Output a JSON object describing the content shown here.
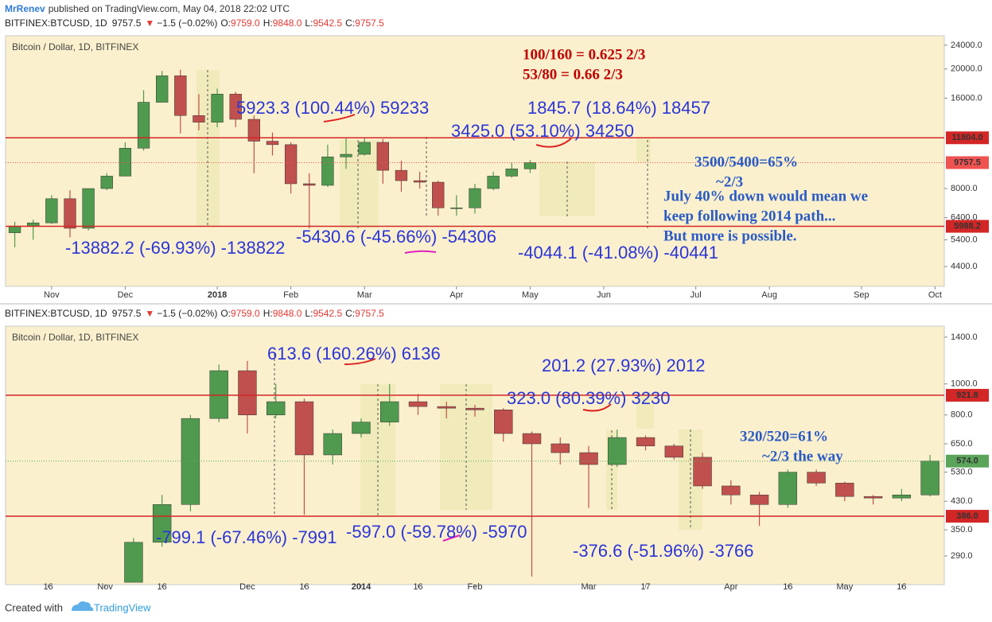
{
  "published": {
    "author": "MrRenev",
    "text": "published on TradingView.com, May 04, 2018 22:02 UTC"
  },
  "chart_data": [
    {
      "type": "candlestick",
      "header": {
        "symbol": "BITFINEX:BTCUSD, 1D",
        "last": "9757.5",
        "arrow": "▼",
        "change": "−1.5 (−0.02%)",
        "ohlc": [
          {
            "label": "O:",
            "value": "9759.0"
          },
          {
            "label": "H:",
            "value": "9848.0"
          },
          {
            "label": "L:",
            "value": "9542.5"
          },
          {
            "label": "C:",
            "value": "9757.5"
          }
        ]
      },
      "title": "Bitcoin / Dollar, 1D, BITFINEX",
      "categories": [
        null,
        null,
        "Nov",
        null,
        null,
        null,
        "Dec",
        null,
        null,
        null,
        null,
        "2018",
        null,
        null,
        null,
        "Feb",
        null,
        null,
        null,
        "Mar",
        null,
        null,
        null,
        null,
        "Apr",
        null,
        null,
        null,
        "May",
        null,
        null,
        null,
        "Jun",
        null,
        null,
        null,
        null,
        "Jul",
        null,
        null,
        null,
        "Aug",
        null,
        null,
        null,
        null,
        "Sep",
        null,
        null,
        null,
        "Oct"
      ],
      "open": [
        5700,
        6000,
        6150,
        7400,
        5900,
        8000,
        8800,
        10900,
        15500,
        19000,
        14000,
        13300,
        16500,
        13600,
        11500,
        11200,
        8300,
        8200,
        10200,
        10400,
        11400,
        9200,
        8500,
        8400,
        6900,
        6900,
        8000,
        8800,
        9300,
        null,
        null,
        null,
        null,
        null,
        null,
        null,
        null,
        null,
        null,
        null,
        null,
        null,
        null,
        null,
        null,
        null,
        null,
        null,
        null,
        null,
        null
      ],
      "high": [
        6200,
        6300,
        7600,
        7900,
        8000,
        9000,
        11400,
        17000,
        19700,
        19900,
        16500,
        17200,
        16800,
        14000,
        12300,
        11400,
        9000,
        11200,
        11800,
        11800,
        11700,
        9900,
        9100,
        8500,
        7600,
        8300,
        9100,
        9800,
        9950,
        null,
        null,
        null,
        null,
        null,
        null,
        null,
        null,
        null,
        null,
        null,
        null,
        null,
        null,
        null,
        null,
        null,
        null,
        null,
        null,
        null,
        null
      ],
      "low": [
        5100,
        5400,
        6100,
        5500,
        5800,
        7900,
        8800,
        10700,
        15500,
        12200,
        12500,
        12800,
        12800,
        9000,
        10300,
        7700,
        5900,
        8100,
        9300,
        10300,
        8300,
        7800,
        8000,
        6500,
        6500,
        6600,
        7900,
        8700,
        9000,
        null,
        null,
        null,
        null,
        null,
        null,
        null,
        null,
        null,
        null,
        null,
        null,
        null,
        null,
        null,
        null,
        null,
        null,
        null,
        null,
        null,
        null
      ],
      "close": [
        6000,
        6150,
        7400,
        5900,
        8000,
        8800,
        10900,
        15500,
        19000,
        14000,
        13300,
        16500,
        13600,
        11500,
        11200,
        8300,
        8200,
        10200,
        10400,
        11400,
        9200,
        8500,
        8400,
        6900,
        6900,
        8000,
        8800,
        9300,
        9757.5,
        null,
        null,
        null,
        null,
        null,
        null,
        null,
        null,
        null,
        null,
        null,
        null,
        null,
        null,
        null,
        null,
        null,
        null,
        null,
        null,
        null,
        null
      ],
      "up_color": "#4f9a4f",
      "down_color": "#c0504d",
      "log_scale": true,
      "grid": false,
      "ylim": [
        3780,
        25800
      ],
      "yticks": [
        {
          "value": 4400,
          "label": "4400.0"
        },
        {
          "value": 5400,
          "label": "5400.0"
        },
        {
          "value": 6400,
          "label": "6400.0"
        },
        {
          "value": 8000,
          "label": "8000.0"
        },
        {
          "value": 16000,
          "label": "16000.0"
        },
        {
          "value": 20000,
          "label": "20000.0"
        },
        {
          "value": 24000,
          "label": "24000.0"
        }
      ],
      "hlines": [
        {
          "value": 11804,
          "label": "11804.0",
          "color": "#d32626"
        },
        {
          "value": 5988.2,
          "label": "5988.2",
          "color": "#d32626"
        }
      ],
      "last_price": {
        "value": 9757.5,
        "label": "9757.5",
        "color": "#ef5350"
      },
      "annotations": [
        {
          "text": "100/160 = 0.625 2/3",
          "color": "#c00000",
          "style": "serif"
        },
        {
          "text": "53/80 = 0.66 2/3",
          "color": "#c00000",
          "style": "serif"
        },
        {
          "text": "5923.3 (100.44%) 59233",
          "color": "#2b35d8",
          "style": "sans"
        },
        {
          "text": "1845.7 (18.64%) 18457",
          "color": "#2b35d8",
          "style": "sans"
        },
        {
          "text": "3425.0 (53.10%) 34250",
          "color": "#2b35d8",
          "style": "sans"
        },
        {
          "text": "3500/5400=65%",
          "color": "#2a5bc6",
          "style": "serif"
        },
        {
          "text": "~2/3",
          "color": "#2a5bc6",
          "style": "serif"
        },
        {
          "text": "July 40% down would mean we",
          "color": "#2a5bc6",
          "style": "serif"
        },
        {
          "text": "keep following 2014 path...",
          "color": "#2a5bc6",
          "style": "serif"
        },
        {
          "text": "But more is possible.",
          "color": "#2a5bc6",
          "style": "serif"
        },
        {
          "text": "-5430.6 (-45.66%) -54306",
          "color": "#2b35d8",
          "style": "sans"
        },
        {
          "text": "-13882.2 (-69.93%) -138822",
          "color": "#2b35d8",
          "style": "sans"
        },
        {
          "text": "-4044.1 (-41.08%) -40441",
          "color": "#2b35d8",
          "style": "sans"
        }
      ]
    },
    {
      "type": "candlestick",
      "header": {
        "symbol": "BITFINEX:BTCUSD, 1D",
        "last": "9757.5",
        "arrow": "▼",
        "change": "−1.5 (−0.02%)",
        "ohlc": [
          {
            "label": "O:",
            "value": "9759.0"
          },
          {
            "label": "H:",
            "value": "9848.0"
          },
          {
            "label": "L:",
            "value": "9542.5"
          },
          {
            "label": "C:",
            "value": "9757.5"
          }
        ]
      },
      "title": "Bitcoin / Dollar, 1D, BITFINEX",
      "categories": [
        null,
        "16",
        null,
        "Nov",
        null,
        "16",
        null,
        null,
        "Dec",
        null,
        "16",
        null,
        "2014",
        null,
        "16",
        null,
        "Feb",
        null,
        null,
        null,
        "Mar",
        null,
        "17",
        null,
        null,
        "Apr",
        null,
        "16",
        null,
        "May",
        null,
        "16",
        null
      ],
      "open": [
        null,
        null,
        null,
        null,
        240,
        320,
        420,
        780,
        1100,
        800,
        880,
        600,
        700,
        760,
        880,
        850,
        840,
        830,
        700,
        650,
        610,
        560,
        680,
        640,
        590,
        480,
        450,
        420,
        530,
        490,
        445,
        440,
        450
      ],
      "high": [
        null,
        null,
        null,
        null,
        330,
        450,
        800,
        1150,
        1180,
        1000,
        900,
        720,
        780,
        1000,
        930,
        880,
        860,
        840,
        710,
        680,
        640,
        720,
        690,
        650,
        610,
        500,
        460,
        540,
        540,
        495,
        450,
        470,
        600
      ],
      "low": [
        null,
        null,
        null,
        null,
        240,
        310,
        400,
        760,
        700,
        780,
        390,
        560,
        680,
        740,
        800,
        780,
        790,
        660,
        250,
        560,
        410,
        550,
        620,
        580,
        470,
        420,
        360,
        410,
        480,
        430,
        420,
        430,
        445
      ],
      "close": [
        null,
        null,
        null,
        null,
        320,
        420,
        780,
        1100,
        800,
        880,
        600,
        700,
        760,
        880,
        850,
        840,
        830,
        700,
        650,
        610,
        560,
        680,
        640,
        590,
        480,
        450,
        420,
        530,
        490,
        445,
        440,
        450,
        574
      ],
      "up_color": "#4f9a4f",
      "down_color": "#c0504d",
      "log_scale": true,
      "grid": false,
      "ylim": [
        236,
        1516
      ],
      "yticks": [
        {
          "value": 290,
          "label": "290.0"
        },
        {
          "value": 350,
          "label": "350.0"
        },
        {
          "value": 430,
          "label": "430.0"
        },
        {
          "value": 530,
          "label": "530.0"
        },
        {
          "value": 650,
          "label": "650.0"
        },
        {
          "value": 800,
          "label": "800.0"
        },
        {
          "value": 1000,
          "label": "1000.0"
        },
        {
          "value": 1400,
          "label": "1400.0"
        }
      ],
      "hlines": [
        {
          "value": 921.8,
          "label": "921.8",
          "color": "#d32626"
        },
        {
          "value": 386,
          "label": "386.0",
          "color": "#d32626"
        }
      ],
      "last_price": {
        "value": 574,
        "label": "574.0",
        "color": "#5ba55b"
      },
      "annotations": [
        {
          "text": "613.6 (160.26%) 6136",
          "color": "#2b35d8",
          "style": "sans"
        },
        {
          "text": "201.2 (27.93%) 2012",
          "color": "#2b35d8",
          "style": "sans"
        },
        {
          "text": "323.0 (80.39%) 3230",
          "color": "#2b35d8",
          "style": "sans"
        },
        {
          "text": "320/520=61%",
          "color": "#2a5bc6",
          "style": "serif"
        },
        {
          "text": "~2/3 the way",
          "color": "#2a5bc6",
          "style": "serif"
        },
        {
          "text": "-799.1 (-67.46%) -7991",
          "color": "#2b35d8",
          "style": "sans"
        },
        {
          "text": "-597.0 (-59.78%) -5970",
          "color": "#2b35d8",
          "style": "sans"
        },
        {
          "text": "-376.6 (-51.96%) -3766",
          "color": "#2b35d8",
          "style": "sans"
        }
      ]
    }
  ],
  "footer": {
    "text": "Created with",
    "brand": "TradingView"
  }
}
